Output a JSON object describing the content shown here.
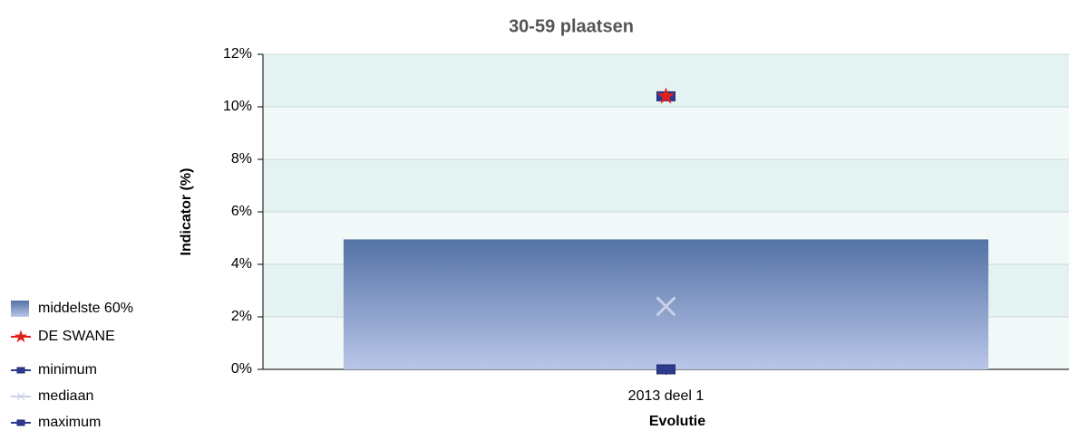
{
  "chart_data": {
    "type": "bar",
    "title": "30-59 plaatsen",
    "x_label": "Evolutie",
    "y_label": "Indicator (%)",
    "categories": [
      "2013 deel 1"
    ],
    "series": [
      {
        "name": "middelste 60%",
        "color": "#6f88bd",
        "marker": "bar",
        "values": [
          4.95
        ]
      },
      {
        "name": "DE SWANE",
        "color": "#e0201b",
        "marker": "star",
        "values": [
          10.4
        ]
      },
      {
        "name": "minimum",
        "color": "#2e3a8c",
        "marker": "dash",
        "values": [
          0
        ]
      },
      {
        "name": "mediaan",
        "color": "#c8d0ea",
        "marker": "x",
        "values": [
          2.4
        ]
      },
      {
        "name": "maximum",
        "color": "#2e3a8c",
        "marker": "dash",
        "values": [
          10.4
        ]
      }
    ],
    "ylim": [
      0,
      12
    ],
    "yticks": [
      {
        "value": 0,
        "label": "0%"
      },
      {
        "value": 2,
        "label": "2%"
      },
      {
        "value": 4,
        "label": "4%"
      },
      {
        "value": 6,
        "label": "6%"
      },
      {
        "value": 8,
        "label": "8%"
      },
      {
        "value": 10,
        "label": "10%"
      },
      {
        "value": 12,
        "label": "12%"
      }
    ],
    "grid": true,
    "legend": "left"
  }
}
